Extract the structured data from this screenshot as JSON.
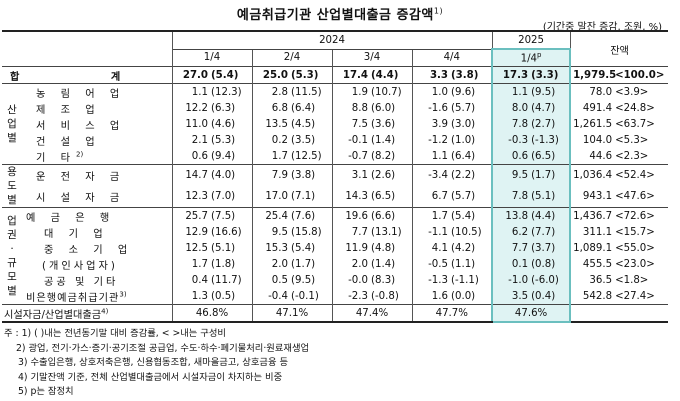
{
  "title": "예금취급기관 산업별대출금 증감액",
  "title_note": "1)",
  "unit": "(기간중 말잔 증감, 조원, %)",
  "years": [
    "2024",
    "2025"
  ],
  "quarters": [
    "1/4",
    "2/4",
    "3/4",
    "4/4",
    "1/4"
  ],
  "quarter_2025_sup": "p",
  "balance_header": "잔액",
  "rows": [
    {
      "group": "",
      "label": "합 계",
      "v": [
        "27.0",
        "(5.4)",
        "25.0",
        "(5.3)",
        "17.4",
        "(4.4)",
        "3.3",
        "(3.8)",
        "17.3",
        "(3.3)"
      ],
      "bal": "1,979.5",
      "share": "<100.0>"
    },
    {
      "group": "산업별",
      "label": "농 림 어 업",
      "v": [
        "1.1",
        "(12.3)",
        "2.8",
        "(11.5)",
        "1.9",
        "(10.7)",
        "1.0",
        "(9.6)",
        "1.1",
        "(9.5)"
      ],
      "bal": "78.0",
      "share": "<3.9>"
    },
    {
      "group": "",
      "label": "제 조 업",
      "v": [
        "12.2",
        "(6.3)",
        "6.8",
        "(6.4)",
        "8.8",
        "(6.0)",
        "-1.6",
        "(5.7)",
        "8.0",
        "(4.7)"
      ],
      "bal": "491.4",
      "share": "<24.8>"
    },
    {
      "group": "",
      "label": "서 비 스 업",
      "v": [
        "11.0",
        "(4.6)",
        "13.5",
        "(4.5)",
        "7.5",
        "(3.6)",
        "3.9",
        "(3.0)",
        "7.8",
        "(2.7)"
      ],
      "bal": "1,261.5",
      "share": "<63.7>"
    },
    {
      "group": "",
      "label": "건 설 업",
      "v": [
        "2.1",
        "(5.3)",
        "0.2",
        "(3.5)",
        "-0.1",
        "(1.4)",
        "-1.2",
        "(1.0)",
        "-0.3",
        "(-1.3)"
      ],
      "bal": "104.0",
      "share": "<5.3>"
    },
    {
      "group": "",
      "label": "기 타",
      "label_note": "2)",
      "v": [
        "0.6",
        "(9.4)",
        "1.7",
        "(12.5)",
        "-0.7",
        "(8.2)",
        "1.1",
        "(6.4)",
        "0.6",
        "(6.5)"
      ],
      "bal": "44.6",
      "share": "<2.3>"
    },
    {
      "group": "용도별",
      "label": "운 전 자 금",
      "v": [
        "14.7",
        "(4.0)",
        "7.9",
        "(3.8)",
        "3.1",
        "(2.6)",
        "-3.4",
        "(2.2)",
        "9.5",
        "(1.7)"
      ],
      "bal": "1,036.4",
      "share": "<52.4>"
    },
    {
      "group": "",
      "label": "시 설 자 금",
      "v": [
        "12.3",
        "(7.0)",
        "17.0",
        "(7.1)",
        "14.3",
        "(6.5)",
        "6.7",
        "(5.7)",
        "7.8",
        "(5.1)"
      ],
      "bal": "943.1",
      "share": "<47.6>"
    },
    {
      "group": "업권·규모별",
      "label": "예 금 은 행",
      "v": [
        "25.7",
        "(7.5)",
        "25.4",
        "(7.6)",
        "19.6",
        "(6.6)",
        "1.7",
        "(5.4)",
        "13.8",
        "(4.4)"
      ],
      "bal": "1,436.7",
      "share": "<72.6>"
    },
    {
      "group": "",
      "label": "대 기 업",
      "v": [
        "12.9",
        "(16.6)",
        "9.5",
        "(15.8)",
        "7.7",
        "(13.1)",
        "-1.1",
        "(10.5)",
        "6.2",
        "(7.7)"
      ],
      "bal": "311.1",
      "share": "<15.7>"
    },
    {
      "group": "",
      "label": "중 소 기 업",
      "v": [
        "12.5",
        "(5.1)",
        "15.3",
        "(5.4)",
        "11.9",
        "(4.8)",
        "4.1",
        "(4.2)",
        "7.7",
        "(3.7)"
      ],
      "bal": "1,089.1",
      "share": "<55.0>"
    },
    {
      "group": "",
      "label": "(개인사업자)",
      "v": [
        "1.7",
        "(1.8)",
        "2.0",
        "(1.7)",
        "2.0",
        "(1.4)",
        "-0.5",
        "(1.1)",
        "0.1",
        "(0.8)"
      ],
      "bal": "455.5",
      "share": "<23.0>"
    },
    {
      "group": "",
      "label": "공공 및 기타",
      "v": [
        "0.4",
        "(11.7)",
        "0.5",
        "(9.5)",
        "-0.0",
        "(8.3)",
        "-1.3",
        "(-1.1)",
        "-1.0",
        "(-6.0)"
      ],
      "bal": "36.5",
      "share": "<1.8>"
    },
    {
      "group": "",
      "label": "비은행예금취급기관",
      "label_note": "3)",
      "v": [
        "1.3",
        "(0.5)",
        "-0.4",
        "(-0.1)",
        "-2.3",
        "(-0.8)",
        "1.6",
        "(0.0)",
        "3.5",
        "(0.4)"
      ],
      "bal": "542.8",
      "share": "<27.4>"
    }
  ],
  "ratio_row": {
    "label": "시설자금/산업별대출금",
    "label_note": "4)",
    "v": [
      "46.8%",
      "47.1%",
      "47.4%",
      "47.7%",
      "47.6%"
    ]
  },
  "notes": [
    "주 : 1) (  )내는 전년동기말 대비 증감률, <  >내는 구성비",
    "2) 광업, 전기·가스·증기·공기조절 공급업, 수도·하수·폐기물처리·원료재생업",
    "3) 수출입은행, 상호저축은행, 신용협동조합, 새마을금고, 상호금융 등",
    "4) 기말잔액 기준, 전체 산업별대출금에서 시설자금이 차지하는 비중",
    "5) p는 잠정치"
  ]
}
